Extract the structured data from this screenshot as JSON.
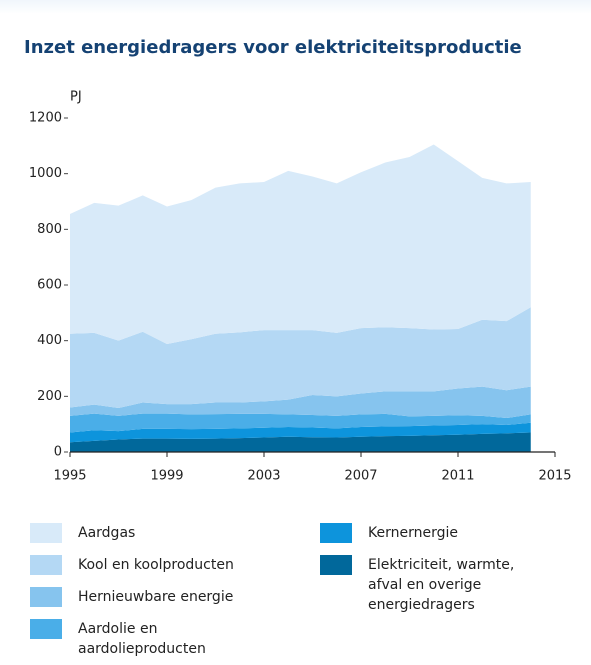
{
  "chart_data": {
    "type": "stacked_area",
    "title": "Inzet energiedragers voor elektriciteitsproductie",
    "ylabel": "PJ",
    "x": [
      1995,
      1996,
      1997,
      1998,
      1999,
      2000,
      2001,
      2002,
      2003,
      2004,
      2005,
      2006,
      2007,
      2008,
      2009,
      2010,
      2011,
      2012,
      2013,
      2014
    ],
    "xlim": [
      1995,
      2015
    ],
    "xticks": [
      1995,
      1999,
      2003,
      2007,
      2011,
      2015
    ],
    "ylim": [
      0,
      1200
    ],
    "yticks": [
      0,
      200,
      400,
      600,
      800,
      1000,
      1200
    ],
    "grid": false,
    "series": [
      {
        "name": "Aardgas",
        "color": "#d8eaf9",
        "values": [
          430,
          467,
          485,
          490,
          494,
          500,
          525,
          535,
          532,
          572,
          552,
          537,
          560,
          592,
          615,
          665,
          603,
          510,
          495,
          450
        ]
      },
      {
        "name": "Kool en koolproducten",
        "color": "#b4d8f4",
        "values": [
          265,
          258,
          242,
          254,
          216,
          233,
          247,
          252,
          256,
          250,
          233,
          228,
          235,
          230,
          227,
          222,
          214,
          240,
          248,
          285
        ]
      },
      {
        "name": "Hernieuwbare energie",
        "color": "#86c4ee",
        "values": [
          30,
          32,
          28,
          40,
          34,
          37,
          42,
          41,
          45,
          53,
          72,
          70,
          75,
          81,
          90,
          88,
          96,
          105,
          100,
          100
        ]
      },
      {
        "name": "Aardolie en aardolieproducten",
        "color": "#4aaee8",
        "values": [
          60,
          60,
          55,
          55,
          55,
          53,
          53,
          52,
          50,
          45,
          45,
          45,
          45,
          45,
          35,
          35,
          35,
          30,
          25,
          30
        ]
      },
      {
        "name": "Kernernergie",
        "color": "#0d94dc",
        "values": [
          35,
          38,
          30,
          35,
          35,
          35,
          35,
          35,
          35,
          35,
          35,
          33,
          35,
          35,
          35,
          35,
          35,
          35,
          30,
          35
        ]
      },
      {
        "name": "Elektriciteit, warmte, afval en overige energiedragers",
        "color": "#01689b",
        "values": [
          35,
          40,
          45,
          48,
          48,
          47,
          48,
          50,
          52,
          55,
          53,
          52,
          55,
          57,
          58,
          60,
          62,
          65,
          67,
          70
        ]
      }
    ]
  }
}
